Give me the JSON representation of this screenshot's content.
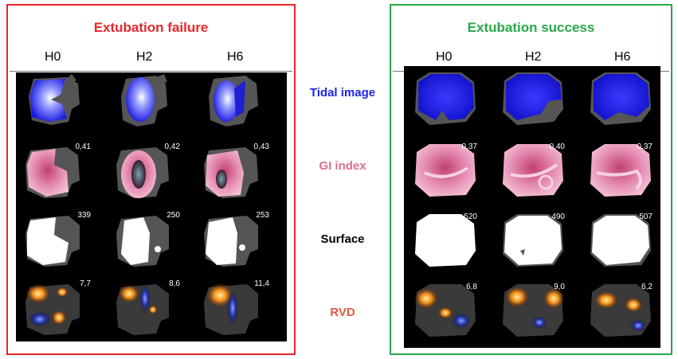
{
  "panels": {
    "left": {
      "title": "Extubation failure",
      "hours": [
        "H0",
        "H2",
        "H6"
      ]
    },
    "right": {
      "title": "Extubation success",
      "hours": [
        "H0",
        "H2",
        "H6"
      ]
    }
  },
  "rows": {
    "tidal": {
      "label": "Tidal image",
      "color": "#1e22ee"
    },
    "gi": {
      "label": "GI index",
      "color": "#e07090",
      "left_values": [
        "0,41",
        "0,42",
        "0,43"
      ],
      "right_values": [
        "0,37",
        "0,40",
        "0,37"
      ]
    },
    "surface": {
      "label": "Surface",
      "color": "#000000",
      "left_values": [
        "339",
        "250",
        "253"
      ],
      "right_values": [
        "520",
        "490",
        "507"
      ]
    },
    "rvd": {
      "label": "RVD",
      "color": "#e8583a",
      "left_values": [
        "7,7",
        "8,6",
        "11,4"
      ],
      "right_values": [
        "6,8",
        "9,0",
        "6,2"
      ]
    }
  }
}
